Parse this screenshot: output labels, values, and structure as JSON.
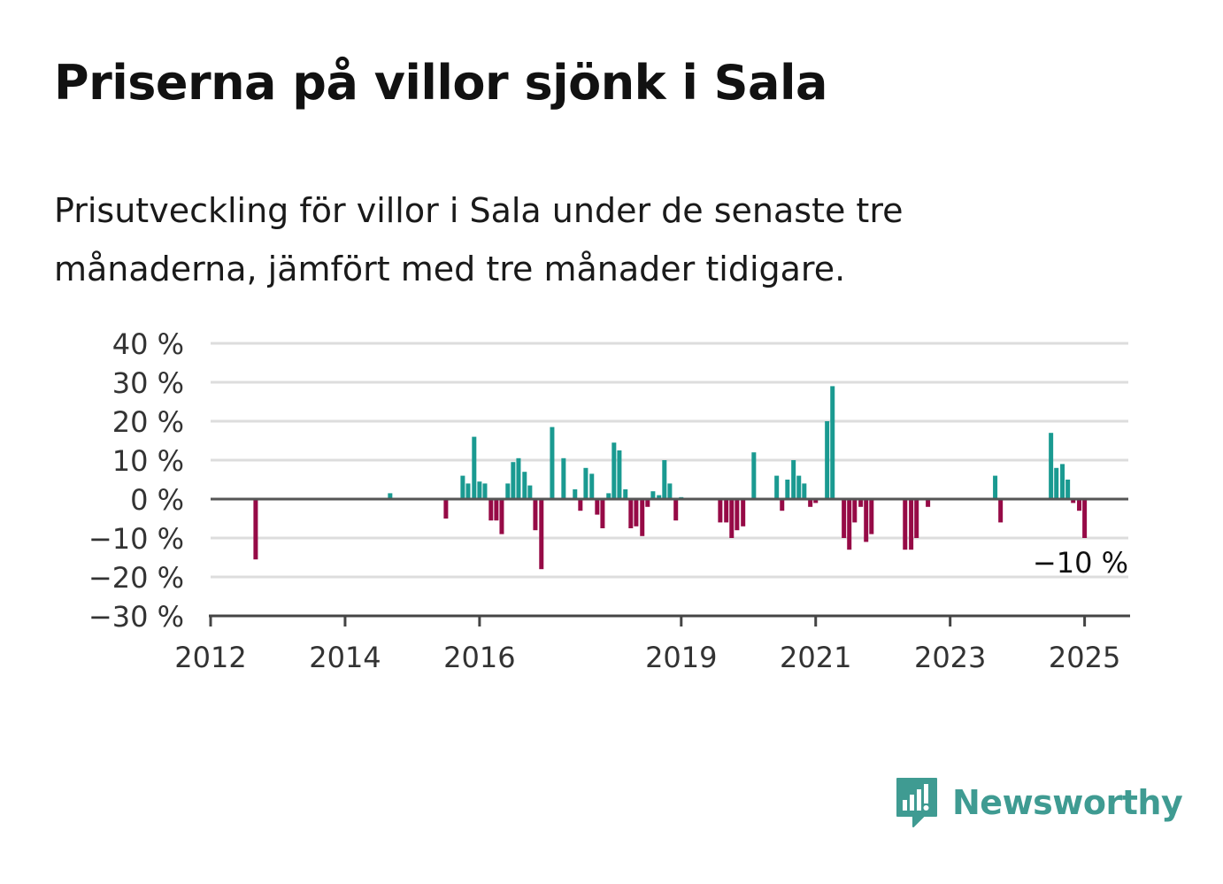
{
  "title": "Priserna på villor sjönk i Sala",
  "subtitle": "Prisutveckling för villor i Sala under de senaste tre månaderna, jämfört med tre månader tidigare.",
  "brand": {
    "name": "Newsworthy",
    "icon": "newsworthy-logo-icon"
  },
  "colors": {
    "positive": "#1a9a91",
    "negative": "#960a46",
    "grid": "#dddddd",
    "zero": "#555555",
    "axis": "#444444"
  },
  "chart_data": {
    "type": "bar",
    "y_tick_labels": [
      "40 %",
      "30 %",
      "20 %",
      "10 %",
      "0 %",
      "−10 %",
      "−20 %",
      "−30 %"
    ],
    "y_ticks": [
      40,
      30,
      20,
      10,
      0,
      -10,
      -20,
      -30
    ],
    "ylim": [
      -30,
      40
    ],
    "x_tick_labels": [
      "2012",
      "2014",
      "2016",
      "2019",
      "2021",
      "2023",
      "2025"
    ],
    "x_ticks": [
      2012,
      2014,
      2016,
      2019,
      2021,
      2023,
      2025
    ],
    "xlim": [
      2012,
      2025.65
    ],
    "annotation": {
      "label": "−10 %",
      "value": -10
    },
    "series": [
      {
        "x": [
          2012.67,
          2014.67,
          2015.5,
          2015.75,
          2015.83,
          2015.92,
          2016.0,
          2016.08,
          2016.17,
          2016.25,
          2016.33,
          2016.42,
          2016.5,
          2016.58,
          2016.67,
          2016.75,
          2016.83,
          2016.92,
          2017.08,
          2017.25,
          2017.42,
          2017.5,
          2017.58,
          2017.67,
          2017.75,
          2017.83,
          2017.92,
          2018.0,
          2018.08,
          2018.17,
          2018.25,
          2018.33,
          2018.42,
          2018.5,
          2018.58,
          2018.67,
          2018.75,
          2018.83,
          2018.92,
          2019.0,
          2019.58,
          2019.67,
          2019.75,
          2019.83,
          2019.92,
          2020.08,
          2020.42,
          2020.5,
          2020.58,
          2020.67,
          2020.75,
          2020.83,
          2020.92,
          2021.0,
          2021.17,
          2021.25,
          2021.42,
          2021.5,
          2021.58,
          2021.67,
          2021.75,
          2021.83,
          2022.33,
          2022.42,
          2022.5,
          2022.67,
          2023.67,
          2023.75,
          2024.5,
          2024.58,
          2024.67,
          2024.75,
          2024.83,
          2024.92,
          2025.0
        ],
        "values": [
          -15.5,
          1.5,
          -5,
          6,
          4,
          16,
          4.5,
          4,
          -5.5,
          -5.5,
          -9,
          4,
          9.5,
          10.5,
          7,
          3.5,
          -8,
          -18,
          18.5,
          10.5,
          2.5,
          -3,
          8,
          6.5,
          -4,
          -7.5,
          1.5,
          14.5,
          12.5,
          2.5,
          -7.5,
          -7,
          -9.5,
          -2,
          2,
          1,
          10,
          4,
          -5.5,
          0.5,
          -6,
          -6,
          -10,
          -8,
          -7,
          12,
          6,
          -3,
          5,
          10,
          6,
          4,
          -2,
          -1,
          20,
          29,
          -10,
          -13,
          -6,
          -2,
          -11,
          -9,
          -13,
          -13,
          -10,
          -2,
          6,
          -6,
          17,
          8,
          9,
          5,
          -1,
          -3,
          -10
        ]
      }
    ]
  }
}
